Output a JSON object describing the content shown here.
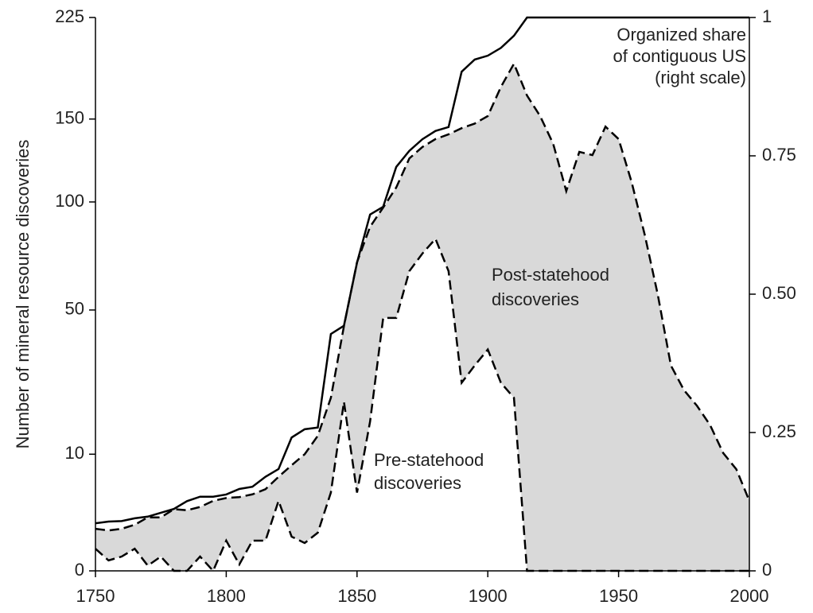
{
  "chart_data": {
    "type": "line",
    "y_label": "Number of mineral resource discoveries",
    "x": [
      1750,
      1755,
      1760,
      1765,
      1770,
      1775,
      1780,
      1785,
      1790,
      1795,
      1800,
      1805,
      1810,
      1815,
      1820,
      1825,
      1830,
      1835,
      1840,
      1845,
      1850,
      1855,
      1860,
      1865,
      1870,
      1875,
      1880,
      1885,
      1890,
      1895,
      1900,
      1905,
      1910,
      1915,
      1920,
      1925,
      1930,
      1935,
      1940,
      1945,
      1950,
      1955,
      1960,
      1965,
      1970,
      1975,
      1980,
      1985,
      1990,
      1995,
      2000
    ],
    "series": [
      {
        "color": "#000000",
        "style": "solid",
        "axis": "y2",
        "values": [
          0.086,
          0.089,
          0.09,
          0.095,
          0.098,
          0.105,
          0.112,
          0.126,
          0.134,
          0.134,
          0.138,
          0.148,
          0.152,
          0.17,
          0.184,
          0.241,
          0.256,
          0.259,
          0.428,
          0.443,
          0.557,
          0.644,
          0.658,
          0.73,
          0.759,
          0.78,
          0.795,
          0.802,
          0.902,
          0.924,
          0.931,
          0.945,
          0.967,
          1,
          1,
          1,
          1,
          1,
          1,
          1,
          1,
          1,
          1,
          1,
          1,
          1,
          1,
          1,
          1,
          1,
          1
        ]
      },
      {
        "color": "#000000",
        "style": "dashed",
        "values": [
          1.3,
          1.2,
          1.3,
          1.56,
          2.1,
          2.1,
          2.8,
          2.7,
          3.0,
          3.6,
          3.9,
          4.0,
          4.3,
          4.9,
          6.5,
          8.2,
          10,
          13.4,
          22,
          44,
          70,
          87,
          97,
          108,
          125,
          132,
          137,
          140,
          144,
          147,
          152,
          172,
          189,
          166,
          152,
          134,
          106,
          129,
          127,
          145,
          137,
          111,
          83,
          56,
          31,
          24,
          20,
          15.6,
          10.2,
          7.6,
          3.6
        ]
      },
      {
        "color": "#000000",
        "style": "dashed",
        "values": [
          0.36,
          0.08,
          0.15,
          0.36,
          0.02,
          0.15,
          0,
          0,
          0.15,
          0,
          0.67,
          0.03,
          0.67,
          0.67,
          3.6,
          0.86,
          0.57,
          1.07,
          4.5,
          21,
          4.5,
          16.4,
          47,
          47,
          66,
          74,
          81,
          66,
          26,
          31,
          36,
          26,
          22,
          0,
          0,
          0,
          0,
          0,
          0,
          0,
          0,
          0,
          0,
          0,
          0,
          0,
          0,
          0,
          0,
          0,
          0
        ]
      }
    ],
    "fill_between": [
      1,
      2
    ],
    "fill_color": "#d9d9d9",
    "annotations": [
      {
        "lines": [
          "Organized share",
          "of contiguous US",
          "(right scale)"
        ]
      },
      {
        "lines": [
          "Post-statehood",
          "discoveries"
        ]
      },
      {
        "lines": [
          "Pre-statehood",
          "discoveries"
        ]
      }
    ],
    "xlim": [
      1750,
      2000
    ],
    "xticks": [
      1750,
      1800,
      1850,
      1900,
      1950,
      2000
    ],
    "ylim": [
      0,
      225
    ],
    "yscale": "sqrt",
    "yticks": [
      0,
      10,
      50,
      100,
      150,
      225
    ],
    "y2lim": [
      0,
      1
    ],
    "y2ticks": [
      0,
      0.25,
      {
        "value": 0.5,
        "label": "0.50"
      },
      0.75,
      1
    ]
  }
}
